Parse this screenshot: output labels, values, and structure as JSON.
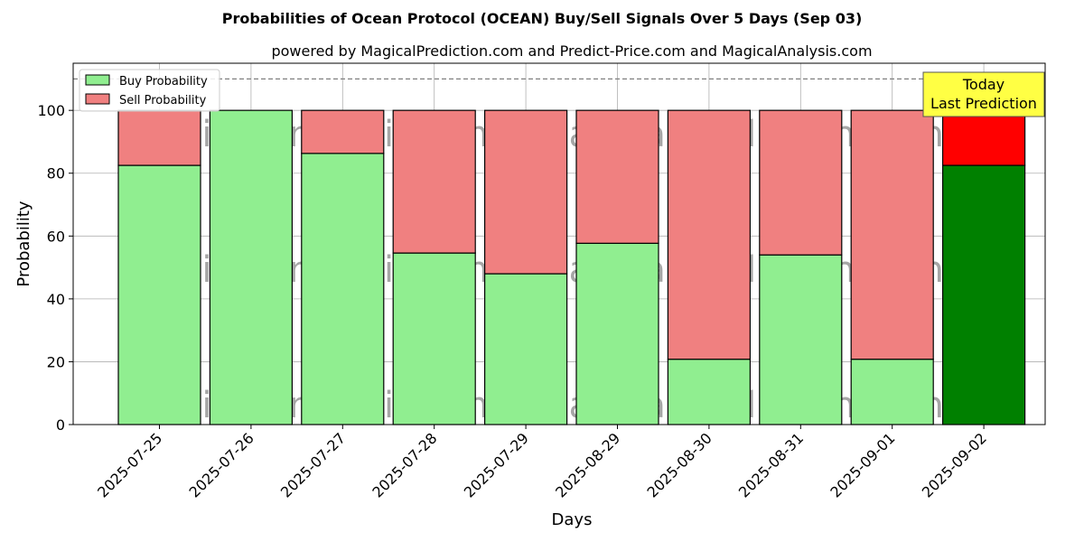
{
  "chart_data": {
    "type": "bar",
    "title": "Probabilities of Ocean Protocol (OCEAN) Buy/Sell Signals Over 5 Days (Sep 03)",
    "subtitle": "powered by MagicalPrediction.com and Predict-Price.com and MagicalAnalysis.com",
    "xlabel": "Days",
    "ylabel": "Probability",
    "ylim": [
      0,
      115
    ],
    "yticks": [
      0,
      20,
      40,
      60,
      80,
      100
    ],
    "reference_line": 110,
    "grid": true,
    "legend_position": "top-left",
    "stacked": true,
    "categories": [
      "2025-07-25",
      "2025-07-26",
      "2025-07-27",
      "2025-07-28",
      "2025-07-29",
      "2025-08-29",
      "2025-08-30",
      "2025-08-31",
      "2025-09-01",
      "2025-09-02"
    ],
    "series": [
      {
        "name": "Buy Probability",
        "values": [
          82.5,
          100,
          86.3,
          54.6,
          48.0,
          57.7,
          20.8,
          54.0,
          20.8,
          82.5
        ],
        "color": "#90ee90",
        "highlight_color": "#008000"
      },
      {
        "name": "Sell Probability",
        "values": [
          17.5,
          0,
          13.7,
          45.4,
          52.0,
          42.3,
          79.2,
          46.0,
          79.2,
          17.5
        ],
        "color": "#f08080",
        "highlight_color": "#ff0000"
      }
    ],
    "highlight_index": 9,
    "annotation": {
      "line1": "Today",
      "line2": "Last Prediction",
      "background": "#ffff44"
    },
    "watermarks": [
      "MagicalAnalysis.com",
      "MagicalPrediction.com"
    ]
  }
}
